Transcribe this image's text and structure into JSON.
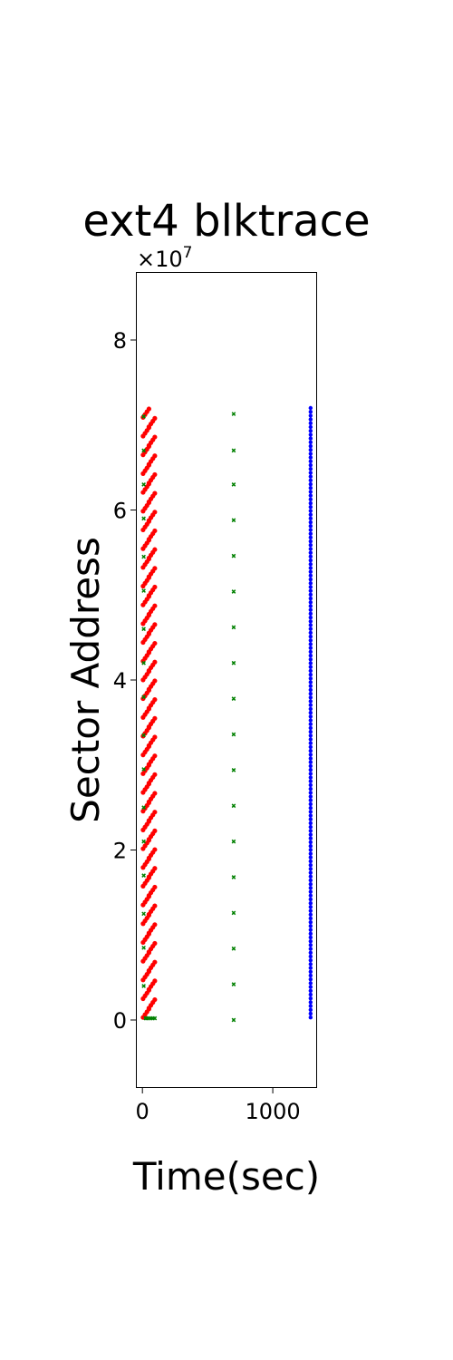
{
  "chart_data": {
    "type": "scatter",
    "title": "ext4 blktrace",
    "xlabel": "Time(sec)",
    "ylabel": "Sector Address",
    "y_exponent_label": "×10",
    "y_exponent_power": "7",
    "xlim": [
      -50,
      1340
    ],
    "ylim": [
      -0.8,
      8.8
    ],
    "y_scale": 10000000,
    "x_ticks": [
      0,
      1000
    ],
    "x_tick_labels": [
      "0",
      "1000"
    ],
    "y_ticks": [
      0,
      2,
      4,
      6,
      8
    ],
    "y_tick_labels": [
      "0",
      "2",
      "4",
      "6",
      "8"
    ],
    "grid": false,
    "legend": "none",
    "series": [
      {
        "color": "#ff0000",
        "marker": "circle",
        "pattern": "staircase",
        "x_start": 5,
        "x_end": 95,
        "y_start": 0.03,
        "y_end": 7.2,
        "steps": 65
      },
      {
        "color": "#008000",
        "marker": "x",
        "points": [
          [
            10,
            7.1
          ],
          [
            10,
            6.7
          ],
          [
            10,
            6.3
          ],
          [
            10,
            5.9
          ],
          [
            10,
            5.45
          ],
          [
            10,
            5.05
          ],
          [
            10,
            4.6
          ],
          [
            10,
            4.2
          ],
          [
            10,
            3.8
          ],
          [
            10,
            3.35
          ],
          [
            10,
            2.95
          ],
          [
            10,
            2.5
          ],
          [
            10,
            2.1
          ],
          [
            10,
            1.7
          ],
          [
            10,
            1.25
          ],
          [
            10,
            0.85
          ],
          [
            10,
            0.4
          ],
          [
            25,
            0.02
          ],
          [
            35,
            0.02
          ],
          [
            50,
            0.02
          ],
          [
            65,
            0.02
          ],
          [
            80,
            0.02
          ],
          [
            95,
            0.02
          ],
          [
            700,
            7.13
          ],
          [
            700,
            6.7
          ],
          [
            700,
            6.3
          ],
          [
            700,
            5.88
          ],
          [
            700,
            5.46
          ],
          [
            700,
            5.04
          ],
          [
            700,
            4.62
          ],
          [
            700,
            4.2
          ],
          [
            700,
            3.78
          ],
          [
            700,
            3.36
          ],
          [
            700,
            2.94
          ],
          [
            700,
            2.52
          ],
          [
            700,
            2.1
          ],
          [
            700,
            1.68
          ],
          [
            700,
            1.26
          ],
          [
            700,
            0.84
          ],
          [
            700,
            0.42
          ],
          [
            700,
            0.0
          ]
        ]
      },
      {
        "color": "#0000ff",
        "marker": "circle",
        "pattern": "vertical-line",
        "x": 1290,
        "y_start": 0.03,
        "y_end": 7.2
      }
    ]
  }
}
